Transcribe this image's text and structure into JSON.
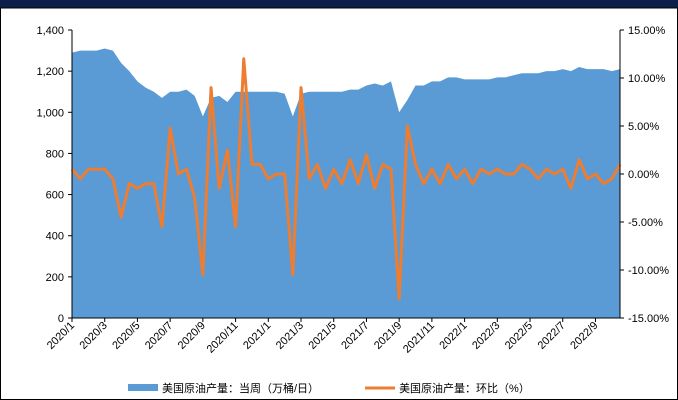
{
  "chart_data": {
    "type": "combo",
    "categories": [
      "2020/1",
      null,
      null,
      null,
      "2020/3",
      null,
      null,
      null,
      "2020/5",
      null,
      null,
      null,
      "2020/7",
      null,
      null,
      null,
      "2020/9",
      null,
      null,
      null,
      "2020/11",
      null,
      null,
      null,
      "2021/1",
      null,
      null,
      null,
      "2021/3",
      null,
      null,
      null,
      "2021/5",
      null,
      null,
      null,
      "2021/7",
      null,
      null,
      null,
      "2021/9",
      null,
      null,
      null,
      "2021/11",
      null,
      null,
      null,
      "2022/1",
      null,
      null,
      null,
      "2022/3",
      null,
      null,
      null,
      "2022/5",
      null,
      null,
      null,
      "2022/7",
      null,
      null,
      null,
      "2022/9",
      null,
      null,
      null
    ],
    "series": [
      {
        "name": "美国原油产量：当周（万桶/日）",
        "type": "area",
        "color": "#5b9bd5",
        "values": [
          1290,
          1300,
          1300,
          1300,
          1310,
          1300,
          1240,
          1200,
          1150,
          1120,
          1100,
          1070,
          1100,
          1100,
          1110,
          1080,
          980,
          1070,
          1080,
          1050,
          1100,
          1100,
          1100,
          1100,
          1100,
          1100,
          1090,
          980,
          1090,
          1100,
          1100,
          1100,
          1100,
          1100,
          1110,
          1110,
          1130,
          1140,
          1130,
          1150,
          1000,
          1060,
          1130,
          1130,
          1150,
          1150,
          1170,
          1170,
          1160,
          1160,
          1160,
          1160,
          1170,
          1170,
          1180,
          1190,
          1190,
          1190,
          1200,
          1200,
          1210,
          1200,
          1220,
          1210,
          1210,
          1210,
          1200,
          1210
        ]
      },
      {
        "name": "美国原油产量：环比（%）",
        "type": "line",
        "axis": "y2",
        "color": "#ed7d31",
        "values": [
          0.5,
          -0.5,
          0.5,
          0.5,
          0.5,
          -0.5,
          -4.5,
          -1,
          -1.5,
          -1,
          -1,
          -5.5,
          4.8,
          0,
          0.5,
          -2.5,
          -10.5,
          9,
          -1.5,
          2.5,
          -5.5,
          12,
          1,
          1,
          -0.5,
          0,
          0,
          -10.5,
          9,
          -0.5,
          1,
          -1.5,
          0.5,
          -1,
          1.5,
          -1,
          2,
          -1.5,
          1,
          0.5,
          -13,
          5,
          1,
          -1,
          0.5,
          -1,
          1,
          -0.5,
          0.5,
          -1,
          0.5,
          0,
          0.5,
          0,
          0,
          1,
          0.5,
          -0.5,
          0.5,
          0,
          0.5,
          -1.5,
          1.5,
          -0.5,
          0,
          -1,
          -0.5,
          1
        ]
      }
    ],
    "ylim": [
      0,
      1400
    ],
    "yticks": [
      0,
      200,
      400,
      600,
      800,
      {
        "value": 1000,
        "label": "1,000"
      },
      {
        "value": 1200,
        "label": "1,200"
      },
      {
        "value": 1400,
        "label": "1,400"
      }
    ],
    "y2lim": [
      -15,
      15
    ],
    "y2ticks": [
      {
        "value": -15,
        "label": "-15.00%"
      },
      {
        "value": -10,
        "label": "-10.00%"
      },
      {
        "value": -5,
        "label": "-5.00%"
      },
      {
        "value": 0,
        "label": "0.00%"
      },
      {
        "value": 5,
        "label": "5.00%"
      },
      {
        "value": 10,
        "label": "10.00%"
      },
      {
        "value": 15,
        "label": "15.00%"
      }
    ],
    "legend": "bottom"
  }
}
